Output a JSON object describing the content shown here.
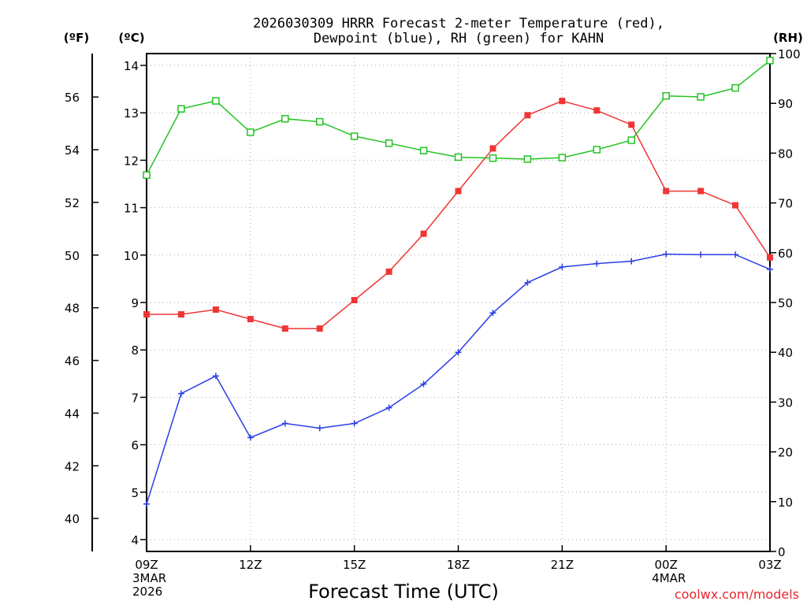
{
  "chart_data": {
    "type": "line",
    "title_line1": "2026030309 HRRR Forecast 2-meter Temperature (red),",
    "title_line2": "Dewpoint (blue), RH (green) for KAHN",
    "xlabel": "Forecast Time (UTC)",
    "credit": "coolwx.com/models",
    "units": {
      "fahrenheit": "(ºF)",
      "celsius": "(ºC)",
      "rh": "(RH)"
    },
    "x_hours": [
      0,
      1,
      2,
      3,
      4,
      5,
      6,
      7,
      8,
      9,
      10,
      11,
      12,
      13,
      14,
      15,
      16,
      17,
      18
    ],
    "x_ticks": [
      {
        "hour": 0,
        "label": "09Z",
        "sub1": "3MAR",
        "sub2": "2026"
      },
      {
        "hour": 3,
        "label": "12Z"
      },
      {
        "hour": 6,
        "label": "15Z"
      },
      {
        "hour": 9,
        "label": "18Z"
      },
      {
        "hour": 12,
        "label": "21Z"
      },
      {
        "hour": 15,
        "label": "00Z",
        "sub1": "4MAR"
      },
      {
        "hour": 18,
        "label": "03Z"
      }
    ],
    "c_axis": {
      "min": 3.75,
      "max": 14.25,
      "ticks": [
        4,
        5,
        6,
        7,
        8,
        9,
        10,
        11,
        12,
        13,
        14
      ]
    },
    "f_ticks": [
      40,
      42,
      44,
      46,
      48,
      50,
      52,
      54,
      56
    ],
    "rh_axis": {
      "min": 0,
      "max": 100,
      "ticks": [
        0,
        10,
        20,
        30,
        40,
        50,
        60,
        70,
        80,
        90,
        100
      ]
    },
    "series": [
      {
        "name": "Temperature",
        "unit": "C",
        "color": "#f03535",
        "values": [
          8.75,
          8.75,
          8.85,
          8.65,
          8.45,
          8.45,
          9.05,
          9.65,
          10.45,
          11.35,
          12.25,
          12.95,
          13.25,
          13.05,
          12.75,
          11.35,
          11.35,
          11.05,
          9.95
        ]
      },
      {
        "name": "Dewpoint",
        "unit": "C",
        "color": "#2b3ee6",
        "values": [
          4.75,
          7.08,
          7.45,
          6.15,
          6.45,
          6.35,
          6.45,
          6.78,
          7.28,
          7.95,
          8.78,
          9.42,
          9.75,
          9.82,
          9.87,
          10.02,
          10.01,
          10.01,
          9.7
        ]
      },
      {
        "name": "RH",
        "unit": "%",
        "color": "#22c322",
        "values": [
          75.6,
          88.9,
          90.5,
          84.2,
          86.9,
          86.3,
          83.4,
          82.0,
          80.5,
          79.2,
          79.0,
          78.8,
          79.1,
          80.7,
          82.6,
          91.5,
          91.3,
          93.1,
          98.6
        ]
      }
    ]
  }
}
